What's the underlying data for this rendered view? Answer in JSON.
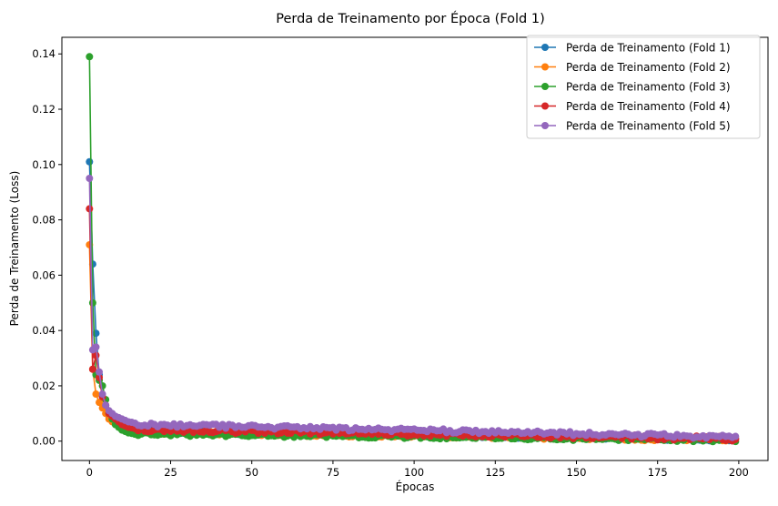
{
  "chart_data": {
    "type": "line",
    "title": "Perda de Treinamento por Época (Fold 1)",
    "xlabel": "Épocas",
    "ylabel": "Perda de Treinamento (Loss)",
    "xlim": [
      -8.5,
      209
    ],
    "ylim": [
      -0.007,
      0.146
    ],
    "x_ticks": [
      0,
      25,
      50,
      75,
      100,
      125,
      150,
      175,
      200
    ],
    "x_tick_labels": [
      "0",
      "25",
      "50",
      "75",
      "100",
      "125",
      "150",
      "175",
      "200"
    ],
    "y_ticks": [
      0.0,
      0.02,
      0.04,
      0.06,
      0.08,
      0.1,
      0.12,
      0.14
    ],
    "y_tick_labels": [
      "0.00",
      "0.02",
      "0.04",
      "0.06",
      "0.08",
      "0.10",
      "0.12",
      "0.14"
    ],
    "grid": false,
    "legend_position": "top-right",
    "n_epochs": 200,
    "series": [
      {
        "name": "Perda de Treinamento (Fold 1)",
        "color": "#1f77b4",
        "marker": "circle",
        "head": [
          0.101,
          0.064,
          0.039,
          0.024,
          0.016,
          0.012,
          0.009,
          0.008,
          0.007,
          0.006,
          0.0055,
          0.005,
          0.0045,
          0.004,
          0.0038
        ],
        "tail_from_epoch": 15,
        "tail_start": 0.0035,
        "tail_end": 0.0006,
        "tail_noise": 0.0006
      },
      {
        "name": "Perda de Treinamento (Fold 2)",
        "color": "#ff7f0e",
        "marker": "circle",
        "head": [
          0.071,
          0.026,
          0.017,
          0.014,
          0.012,
          0.01,
          0.008,
          0.007,
          0.006,
          0.0055,
          0.005,
          0.0045,
          0.004,
          0.0038,
          0.0035
        ],
        "tail_from_epoch": 15,
        "tail_start": 0.0032,
        "tail_end": 0.0005,
        "tail_noise": 0.0007
      },
      {
        "name": "Perda de Treinamento (Fold 3)",
        "color": "#2ca02c",
        "marker": "circle",
        "head": [
          0.139,
          0.05,
          0.024,
          0.022,
          0.02,
          0.015,
          0.01,
          0.008,
          0.006,
          0.005,
          0.004,
          0.0035,
          0.003,
          0.0028,
          0.0025
        ],
        "tail_from_epoch": 15,
        "tail_start": 0.0025,
        "tail_end": 0.0003,
        "tail_noise": 0.0006
      },
      {
        "name": "Perda de Treinamento (Fold 4)",
        "color": "#d62728",
        "marker": "circle",
        "head": [
          0.084,
          0.026,
          0.031,
          0.023,
          0.016,
          0.013,
          0.01,
          0.009,
          0.008,
          0.007,
          0.006,
          0.0055,
          0.005,
          0.0048,
          0.0045
        ],
        "tail_from_epoch": 15,
        "tail_start": 0.0042,
        "tail_end": 0.0008,
        "tail_noise": 0.0008
      },
      {
        "name": "Perda de Treinamento (Fold 5)",
        "color": "#9467bd",
        "marker": "circle",
        "head": [
          0.095,
          0.033,
          0.034,
          0.025,
          0.017,
          0.013,
          0.011,
          0.01,
          0.009,
          0.0085,
          0.008,
          0.0075,
          0.007,
          0.0068,
          0.0065
        ],
        "tail_from_epoch": 15,
        "tail_start": 0.006,
        "tail_end": 0.0015,
        "tail_noise": 0.0007
      }
    ]
  }
}
